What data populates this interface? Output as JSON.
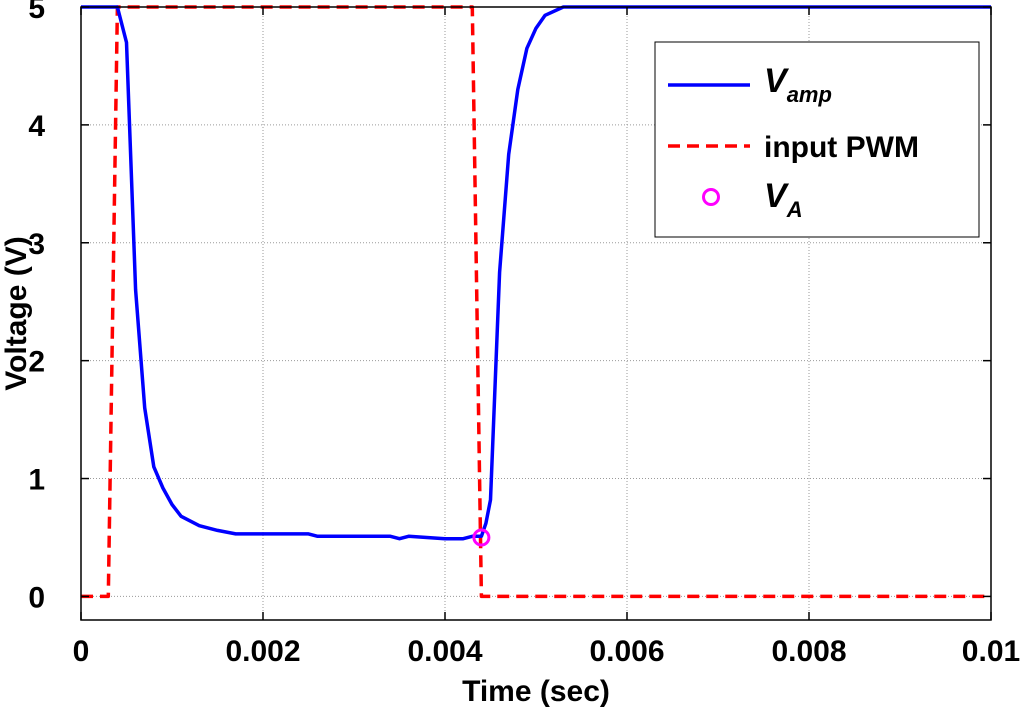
{
  "chart_data": {
    "type": "line",
    "xlabel": "Time (sec)",
    "ylabel": "Voltage (V)",
    "xlim": [
      0,
      0.01
    ],
    "ylim": [
      -0.2,
      5
    ],
    "x_ticks": [
      0,
      0.002,
      0.004,
      0.006,
      0.008,
      0.01
    ],
    "x_tick_labels": [
      "0",
      "0.002",
      "0.004",
      "0.006",
      "0.008",
      "0.01"
    ],
    "y_ticks": [
      0,
      1,
      2,
      3,
      4,
      5
    ],
    "y_tick_labels": [
      "0",
      "1",
      "2",
      "3",
      "4",
      "5"
    ],
    "grid": true,
    "legend_position": "top-right",
    "series": [
      {
        "name_main": "V",
        "name_sub": "amp",
        "color": "#0000ff",
        "style": "solid",
        "x": [
          0,
          0.0004,
          0.0005,
          0.0006,
          0.0007,
          0.0008,
          0.0009,
          0.001,
          0.0011,
          0.0013,
          0.0015,
          0.0017,
          0.002,
          0.0025,
          0.0026,
          0.003,
          0.0034,
          0.0035,
          0.0036,
          0.004,
          0.0042,
          0.0043,
          0.0044,
          0.00445,
          0.0045,
          0.0046,
          0.0047,
          0.0048,
          0.0049,
          0.005,
          0.0051,
          0.0053,
          0.006,
          0.008,
          0.01
        ],
        "y": [
          5,
          5,
          4.7,
          2.6,
          1.6,
          1.1,
          0.92,
          0.78,
          0.68,
          0.6,
          0.56,
          0.53,
          0.53,
          0.53,
          0.51,
          0.51,
          0.51,
          0.49,
          0.51,
          0.49,
          0.49,
          0.51,
          0.51,
          0.62,
          0.82,
          2.75,
          3.75,
          4.3,
          4.65,
          4.82,
          4.93,
          5,
          5,
          5,
          5
        ]
      },
      {
        "name_main": "input PWM",
        "color": "#ff0000",
        "style": "dashed",
        "x": [
          0,
          0.0003,
          0.0004,
          0.0043,
          0.0044,
          0.01
        ],
        "y": [
          0,
          0,
          5,
          5,
          0,
          0
        ]
      },
      {
        "name_main": "V",
        "name_sub": "A",
        "color": "#ff00ff",
        "style": "marker-circle",
        "x": [
          0.0044
        ],
        "y": [
          0.5
        ]
      }
    ]
  }
}
